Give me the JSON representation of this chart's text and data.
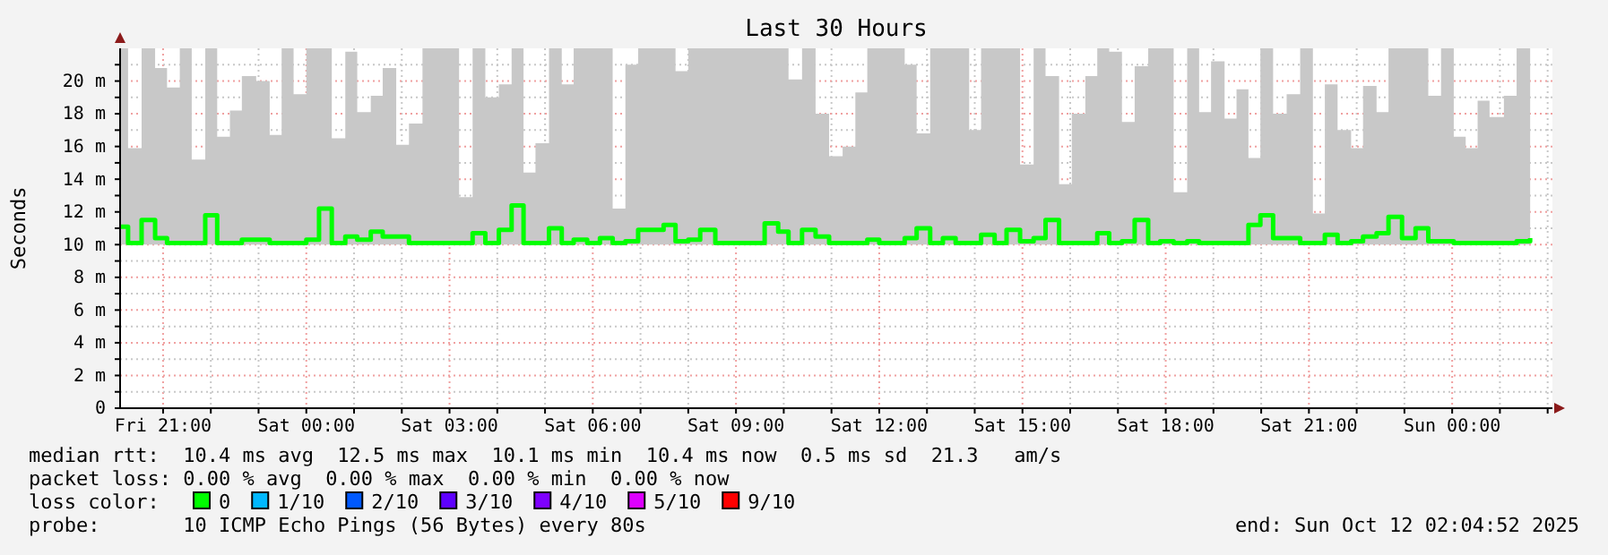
{
  "chart_data": {
    "type": "step",
    "title": "Last 30 Hours",
    "ylabel": "Seconds",
    "legend_title": "loss color:",
    "legend": "bottom",
    "grid": true,
    "xlim": [
      "2025-10-10T20:06",
      "2025-10-12T02:06"
    ],
    "ylim": [
      0,
      22
    ],
    "xticks": [
      {
        "value": "2025-10-10T21:00",
        "label": "Fri 21:00"
      },
      {
        "value": "2025-10-10T22:00",
        "label": null
      },
      {
        "value": "2025-10-10T23:00",
        "label": null
      },
      {
        "value": "2025-10-11T00:00",
        "label": "Sat 00:00"
      },
      {
        "value": "2025-10-11T01:00",
        "label": null
      },
      {
        "value": "2025-10-11T02:00",
        "label": null
      },
      {
        "value": "2025-10-11T03:00",
        "label": "Sat 03:00"
      },
      {
        "value": "2025-10-11T04:00",
        "label": null
      },
      {
        "value": "2025-10-11T05:00",
        "label": null
      },
      {
        "value": "2025-10-11T06:00",
        "label": "Sat 06:00"
      },
      {
        "value": "2025-10-11T07:00",
        "label": null
      },
      {
        "value": "2025-10-11T08:00",
        "label": null
      },
      {
        "value": "2025-10-11T09:00",
        "label": "Sat 09:00"
      },
      {
        "value": "2025-10-11T10:00",
        "label": null
      },
      {
        "value": "2025-10-11T11:00",
        "label": null
      },
      {
        "value": "2025-10-11T12:00",
        "label": "Sat 12:00"
      },
      {
        "value": "2025-10-11T13:00",
        "label": null
      },
      {
        "value": "2025-10-11T14:00",
        "label": null
      },
      {
        "value": "2025-10-11T15:00",
        "label": "Sat 15:00"
      },
      {
        "value": "2025-10-11T16:00",
        "label": null
      },
      {
        "value": "2025-10-11T17:00",
        "label": null
      },
      {
        "value": "2025-10-11T18:00",
        "label": "Sat 18:00"
      },
      {
        "value": "2025-10-11T19:00",
        "label": null
      },
      {
        "value": "2025-10-11T20:00",
        "label": null
      },
      {
        "value": "2025-10-11T21:00",
        "label": "Sat 21:00"
      },
      {
        "value": "2025-10-11T22:00",
        "label": null
      },
      {
        "value": "2025-10-11T23:00",
        "label": null
      },
      {
        "value": "2025-10-12T00:00",
        "label": "Sun 00:00"
      },
      {
        "value": "2025-10-12T01:00",
        "label": null
      },
      {
        "value": "2025-10-12T02:00",
        "label": null
      }
    ],
    "yticks": [
      0,
      {
        "value": 1,
        "label": null
      },
      {
        "value": 2,
        "label": "2 m"
      },
      {
        "value": 3,
        "label": null
      },
      {
        "value": 4,
        "label": "4 m"
      },
      {
        "value": 5,
        "label": null
      },
      {
        "value": 6,
        "label": "6 m"
      },
      {
        "value": 7,
        "label": null
      },
      {
        "value": 8,
        "label": "8 m"
      },
      {
        "value": 9,
        "label": null
      },
      {
        "value": 10,
        "label": "10 m"
      },
      {
        "value": 11,
        "label": null
      },
      {
        "value": 12,
        "label": "12 m"
      },
      {
        "value": 13,
        "label": null
      },
      {
        "value": 14,
        "label": "14 m"
      },
      {
        "value": 15,
        "label": null
      },
      {
        "value": 16,
        "label": "16 m"
      },
      {
        "value": 17,
        "label": null
      },
      {
        "value": 18,
        "label": "18 m"
      },
      {
        "value": 19,
        "label": null
      },
      {
        "value": 20,
        "label": "20 m"
      },
      {
        "value": 21,
        "label": null
      }
    ],
    "x": [
      "2025-10-10T20:06",
      "2025-10-10T20:16",
      "2025-10-10T20:33",
      "2025-10-10T20:50",
      "2025-10-10T21:05",
      "2025-10-10T21:21",
      "2025-10-10T21:36",
      "2025-10-10T21:53",
      "2025-10-10T22:08",
      "2025-10-10T22:24",
      "2025-10-10T22:39",
      "2025-10-10T22:57",
      "2025-10-10T23:14",
      "2025-10-10T23:29",
      "2025-10-10T23:44",
      "2025-10-11T00:00",
      "2025-10-11T00:16",
      "2025-10-11T00:32",
      "2025-10-11T00:49",
      "2025-10-11T01:04",
      "2025-10-11T01:21",
      "2025-10-11T01:36",
      "2025-10-11T01:53",
      "2025-10-11T02:09",
      "2025-10-11T02:26",
      "2025-10-11T02:41",
      "2025-10-11T02:57",
      "2025-10-11T03:12",
      "2025-10-11T03:29",
      "2025-10-11T03:45",
      "2025-10-11T04:02",
      "2025-10-11T04:18",
      "2025-10-11T04:33",
      "2025-10-11T04:48",
      "2025-10-11T05:05",
      "2025-10-11T05:21",
      "2025-10-11T05:36",
      "2025-10-11T05:53",
      "2025-10-11T06:09",
      "2025-10-11T06:25",
      "2025-10-11T06:41",
      "2025-10-11T06:57",
      "2025-10-11T07:14",
      "2025-10-11T07:29",
      "2025-10-11T07:44",
      "2025-10-11T08:00",
      "2025-10-11T08:15",
      "2025-10-11T08:34",
      "2025-10-11T09:36",
      "2025-10-11T09:53",
      "2025-10-11T10:06",
      "2025-10-11T10:23",
      "2025-10-11T10:40",
      "2025-10-11T10:57",
      "2025-10-11T11:14",
      "2025-10-11T11:30",
      "2025-10-11T11:45",
      "2025-10-11T12:00",
      "2025-10-11T12:15",
      "2025-10-11T12:32",
      "2025-10-11T12:47",
      "2025-10-11T13:04",
      "2025-10-11T13:20",
      "2025-10-11T13:36",
      "2025-10-11T13:53",
      "2025-10-11T14:08",
      "2025-10-11T14:25",
      "2025-10-11T14:40",
      "2025-10-11T14:57",
      "2025-10-11T15:14",
      "2025-10-11T15:29",
      "2025-10-11T15:46",
      "2025-10-11T16:02",
      "2025-10-11T16:19",
      "2025-10-11T16:34",
      "2025-10-11T16:49",
      "2025-10-11T17:05",
      "2025-10-11T17:21",
      "2025-10-11T17:38",
      "2025-10-11T17:53",
      "2025-10-11T18:10",
      "2025-10-11T18:27",
      "2025-10-11T18:42",
      "2025-10-11T18:57",
      "2025-10-11T19:14",
      "2025-10-11T19:29",
      "2025-10-11T19:44",
      "2025-10-11T19:59",
      "2025-10-11T20:15",
      "2025-10-11T20:32",
      "2025-10-11T20:49",
      "2025-10-11T21:05",
      "2025-10-11T21:20",
      "2025-10-11T21:36",
      "2025-10-11T21:53",
      "2025-10-11T22:08",
      "2025-10-11T22:25",
      "2025-10-11T22:40",
      "2025-10-11T22:57",
      "2025-10-11T23:14",
      "2025-10-11T23:30",
      "2025-10-11T23:46",
      "2025-10-12T00:02",
      "2025-10-12T00:17",
      "2025-10-12T00:32",
      "2025-10-12T00:47",
      "2025-10-12T01:05",
      "2025-10-12T01:21",
      "2025-10-12T01:38"
    ],
    "series": [
      {
        "name": "0",
        "color": "#00ff00",
        "values": [
          11.1,
          10.1,
          11.5,
          10.4,
          10.1,
          10.1,
          10.1,
          11.8,
          10.1,
          10.1,
          10.3,
          10.3,
          10.1,
          10.1,
          10.1,
          10.3,
          12.2,
          10.1,
          10.5,
          10.3,
          10.8,
          10.5,
          10.5,
          10.1,
          10.1,
          10.1,
          10.1,
          10.1,
          10.7,
          10.1,
          10.9,
          12.4,
          10.1,
          10.1,
          11.0,
          10.1,
          10.3,
          10.1,
          10.4,
          10.1,
          10.2,
          10.9,
          10.9,
          11.2,
          10.2,
          10.3,
          10.9,
          10.1,
          11.3,
          10.8,
          10.1,
          10.9,
          10.5,
          10.1,
          10.1,
          10.1,
          10.3,
          10.1,
          10.1,
          10.4,
          11.0,
          10.1,
          10.4,
          10.1,
          10.1,
          10.6,
          10.1,
          10.9,
          10.2,
          10.4,
          11.5,
          10.1,
          10.1,
          10.1,
          10.7,
          10.1,
          10.2,
          11.5,
          10.1,
          10.2,
          10.1,
          10.2,
          10.1,
          10.1,
          10.1,
          10.1,
          11.2,
          11.8,
          10.4,
          10.4,
          10.1,
          10.1,
          10.6,
          10.1,
          10.2,
          10.5,
          10.7,
          11.7,
          10.4,
          11.0,
          10.2,
          10.2,
          10.1,
          10.1,
          10.1,
          10.1,
          10.1,
          10.2,
          10.4
        ],
        "lower": [
          10,
          10,
          10,
          10,
          10,
          10,
          10,
          10,
          10,
          10,
          10,
          10,
          10,
          10,
          10,
          10,
          10,
          10,
          10,
          10,
          10,
          10,
          10,
          10,
          10,
          10,
          10,
          10,
          10,
          10,
          10,
          10,
          10,
          10,
          10,
          10,
          10,
          10,
          10,
          10,
          10,
          10,
          10,
          10,
          10,
          10,
          10,
          10,
          10,
          10,
          10,
          10,
          10,
          10,
          10,
          10,
          10,
          10,
          10,
          10,
          10,
          10,
          10,
          10,
          10,
          10,
          10,
          10,
          10,
          10,
          10,
          10,
          10,
          10,
          10,
          10,
          10,
          10,
          10,
          10,
          10,
          10,
          10,
          10,
          10,
          10,
          10,
          10,
          10,
          10,
          10,
          10,
          10,
          10,
          10,
          10,
          10,
          10,
          10,
          10,
          10,
          10,
          10,
          10,
          10,
          10,
          10,
          10,
          10
        ],
        "upper": [
          22,
          15.9,
          22,
          20.8,
          19.6,
          22,
          15.2,
          22,
          16.6,
          18.2,
          20.3,
          20.0,
          16.7,
          22,
          19.2,
          22,
          22,
          16.5,
          21.8,
          18.1,
          19.1,
          20.8,
          16.1,
          17.4,
          22,
          22,
          22,
          12.9,
          22,
          19.0,
          19.8,
          22,
          14.4,
          16.2,
          22,
          19.8,
          22,
          22,
          22,
          12.2,
          21.0,
          22,
          22,
          22,
          20.6,
          22,
          22,
          22,
          22,
          22,
          20.1,
          22,
          18.0,
          15.4,
          16.0,
          19.3,
          22,
          22,
          22,
          21.0,
          16.8,
          22,
          22,
          22,
          17.0,
          22,
          22,
          22,
          14.9,
          22,
          20.3,
          13.7,
          18.0,
          20.3,
          22,
          21.8,
          17.5,
          20.9,
          22,
          22,
          13.2,
          22,
          18.1,
          21.2,
          17.7,
          19.5,
          15.3,
          22,
          18.0,
          19.2,
          22,
          11.9,
          19.8,
          17.0,
          15.9,
          19.7,
          18.1,
          22,
          22,
          22,
          19.1,
          22,
          16.6,
          15.9,
          18.8,
          17.8,
          19.1,
          22,
          22
        ]
      },
      {
        "name": "1/10",
        "color": "#00b8ff",
        "values": [
          null,
          null,
          null,
          null,
          null,
          null,
          null,
          null,
          null,
          null,
          null,
          null,
          null,
          null,
          null,
          null,
          null,
          null,
          null,
          null,
          null,
          null,
          null,
          null,
          null,
          null,
          null,
          null,
          null,
          null,
          null,
          null,
          null,
          null,
          null,
          null,
          null,
          null,
          null,
          null,
          null,
          null,
          null,
          null,
          null,
          null,
          null,
          null,
          null,
          null,
          null,
          null,
          null,
          null,
          null,
          null,
          null,
          null,
          null,
          null,
          null,
          null,
          null,
          null,
          null,
          null,
          null,
          null,
          null,
          null,
          null,
          null,
          null,
          null,
          null,
          null,
          null,
          null,
          null,
          null,
          null,
          null,
          null,
          null,
          null,
          null,
          null,
          null,
          null,
          null,
          null,
          null,
          null,
          null,
          null,
          null,
          null,
          null,
          null,
          null,
          null,
          null,
          null,
          null,
          null,
          null,
          null,
          null,
          null
        ]
      },
      {
        "name": "2/10",
        "color": "#0059ff",
        "values": [
          null,
          null,
          null,
          null,
          null,
          null,
          null,
          null,
          null,
          null,
          null,
          null,
          null,
          null,
          null,
          null,
          null,
          null,
          null,
          null,
          null,
          null,
          null,
          null,
          null,
          null,
          null,
          null,
          null,
          null,
          null,
          null,
          null,
          null,
          null,
          null,
          null,
          null,
          null,
          null,
          null,
          null,
          null,
          null,
          null,
          null,
          null,
          null,
          null,
          null,
          null,
          null,
          null,
          null,
          null,
          null,
          null,
          null,
          null,
          null,
          null,
          null,
          null,
          null,
          null,
          null,
          null,
          null,
          null,
          null,
          null,
          null,
          null,
          null,
          null,
          null,
          null,
          null,
          null,
          null,
          null,
          null,
          null,
          null,
          null,
          null,
          null,
          null,
          null,
          null,
          null,
          null,
          null,
          null,
          null,
          null,
          null,
          null,
          null,
          null,
          null,
          null,
          null,
          null,
          null,
          null,
          null,
          null,
          null
        ]
      },
      {
        "name": "3/10",
        "color": "#5e00ff",
        "values": [
          null,
          null,
          null,
          null,
          null,
          null,
          null,
          null,
          null,
          null,
          null,
          null,
          null,
          null,
          null,
          null,
          null,
          null,
          null,
          null,
          null,
          null,
          null,
          null,
          null,
          null,
          null,
          null,
          null,
          null,
          null,
          null,
          null,
          null,
          null,
          null,
          null,
          null,
          null,
          null,
          null,
          null,
          null,
          null,
          null,
          null,
          null,
          null,
          null,
          null,
          null,
          null,
          null,
          null,
          null,
          null,
          null,
          null,
          null,
          null,
          null,
          null,
          null,
          null,
          null,
          null,
          null,
          null,
          null,
          null,
          null,
          null,
          null,
          null,
          null,
          null,
          null,
          null,
          null,
          null,
          null,
          null,
          null,
          null,
          null,
          null,
          null,
          null,
          null,
          null,
          null,
          null,
          null,
          null,
          null,
          null,
          null,
          null,
          null,
          null,
          null,
          null,
          null,
          null,
          null,
          null,
          null,
          null,
          null
        ]
      },
      {
        "name": "4/10",
        "color": "#7e00ff",
        "values": [
          null,
          null,
          null,
          null,
          null,
          null,
          null,
          null,
          null,
          null,
          null,
          null,
          null,
          null,
          null,
          null,
          null,
          null,
          null,
          null,
          null,
          null,
          null,
          null,
          null,
          null,
          null,
          null,
          null,
          null,
          null,
          null,
          null,
          null,
          null,
          null,
          null,
          null,
          null,
          null,
          null,
          null,
          null,
          null,
          null,
          null,
          null,
          null,
          null,
          null,
          null,
          null,
          null,
          null,
          null,
          null,
          null,
          null,
          null,
          null,
          null,
          null,
          null,
          null,
          null,
          null,
          null,
          null,
          null,
          null,
          null,
          null,
          null,
          null,
          null,
          null,
          null,
          null,
          null,
          null,
          null,
          null,
          null,
          null,
          null,
          null,
          null,
          null,
          null,
          null,
          null,
          null,
          null,
          null,
          null,
          null,
          null,
          null,
          null,
          null,
          null,
          null,
          null,
          null,
          null,
          null,
          null,
          null,
          null
        ]
      },
      {
        "name": "5/10",
        "color": "#dd00ff",
        "values": [
          null,
          null,
          null,
          null,
          null,
          null,
          null,
          null,
          null,
          null,
          null,
          null,
          null,
          null,
          null,
          null,
          null,
          null,
          null,
          null,
          null,
          null,
          null,
          null,
          null,
          null,
          null,
          null,
          null,
          null,
          null,
          null,
          null,
          null,
          null,
          null,
          null,
          null,
          null,
          null,
          null,
          null,
          null,
          null,
          null,
          null,
          null,
          null,
          null,
          null,
          null,
          null,
          null,
          null,
          null,
          null,
          null,
          null,
          null,
          null,
          null,
          null,
          null,
          null,
          null,
          null,
          null,
          null,
          null,
          null,
          null,
          null,
          null,
          null,
          null,
          null,
          null,
          null,
          null,
          null,
          null,
          null,
          null,
          null,
          null,
          null,
          null,
          null,
          null,
          null,
          null,
          null,
          null,
          null,
          null,
          null,
          null,
          null,
          null,
          null,
          null,
          null,
          null,
          null,
          null,
          null,
          null,
          null,
          null
        ]
      },
      {
        "name": "9/10",
        "color": "#ff0000",
        "values": [
          null,
          null,
          null,
          null,
          null,
          null,
          null,
          null,
          null,
          null,
          null,
          null,
          null,
          null,
          null,
          null,
          null,
          null,
          null,
          null,
          null,
          null,
          null,
          null,
          null,
          null,
          null,
          null,
          null,
          null,
          null,
          null,
          null,
          null,
          null,
          null,
          null,
          null,
          null,
          null,
          null,
          null,
          null,
          null,
          null,
          null,
          null,
          null,
          null,
          null,
          null,
          null,
          null,
          null,
          null,
          null,
          null,
          null,
          null,
          null,
          null,
          null,
          null,
          null,
          null,
          null,
          null,
          null,
          null,
          null,
          null,
          null,
          null,
          null,
          null,
          null,
          null,
          null,
          null,
          null,
          null,
          null,
          null,
          null,
          null,
          null,
          null,
          null,
          null,
          null,
          null,
          null,
          null,
          null,
          null,
          null,
          null,
          null,
          null,
          null,
          null,
          null,
          null,
          null,
          null,
          null,
          null,
          null,
          null
        ]
      }
    ],
    "annotations": [
      "median rtt:  10.4 ms avg  12.5 ms max  10.1 ms min  10.4 ms now  0.5 ms sd  21.3   am/s",
      "packet loss: 0.00 % avg  0.00 % max  0.00 % min  0.00 % now",
      "probe:       10 ICMP Echo Pings (56 Bytes) every 80s",
      "end: Sun Oct 12 02:04:52 2025"
    ]
  }
}
